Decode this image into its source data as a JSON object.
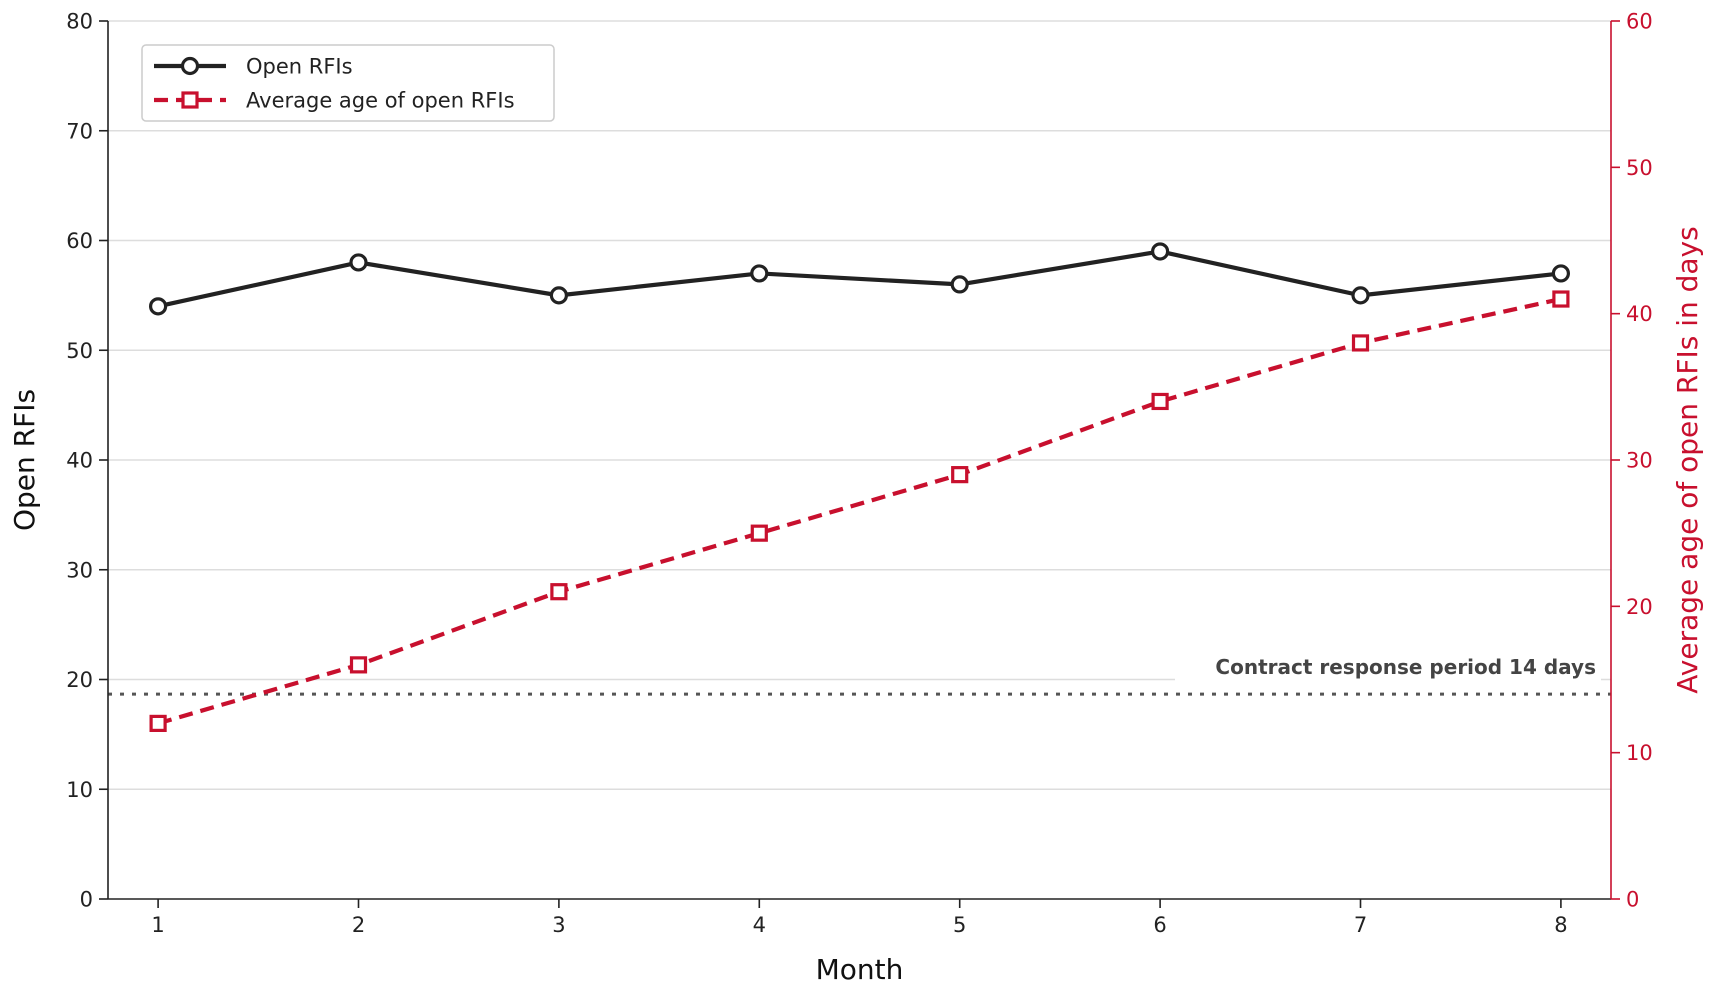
{
  "chart_data": {
    "type": "line",
    "xlabel": "Month",
    "ylabel": "Open RFIs",
    "y2label": "Average age of open RFIs in days",
    "x": [
      1,
      2,
      3,
      4,
      5,
      6,
      7,
      8
    ],
    "xlim": [
      0.75,
      8.25
    ],
    "ylim": [
      0,
      80
    ],
    "y2lim": [
      0,
      60
    ],
    "yticks": [
      0,
      10,
      20,
      30,
      40,
      50,
      60,
      70,
      80
    ],
    "y2ticks": [
      0,
      10,
      20,
      30,
      40,
      50,
      60
    ],
    "grid": "horizontal",
    "legend_placement": "upper-left",
    "series": [
      {
        "name": "Open RFIs",
        "axis": "left",
        "values": [
          54,
          58,
          55,
          57,
          56,
          59,
          55,
          57
        ],
        "color": "#222222",
        "style": "solid",
        "marker": "circle"
      },
      {
        "name": "Average age of open RFIs",
        "axis": "right",
        "values": [
          12,
          16,
          21,
          25,
          29,
          34,
          38,
          41
        ],
        "color": "#c8102e",
        "style": "dashed",
        "marker": "square"
      }
    ],
    "reference_line": {
      "axis": "right",
      "value": 14,
      "label": "Contract response period 14 days",
      "color": "#555555",
      "style": "dotted"
    }
  }
}
